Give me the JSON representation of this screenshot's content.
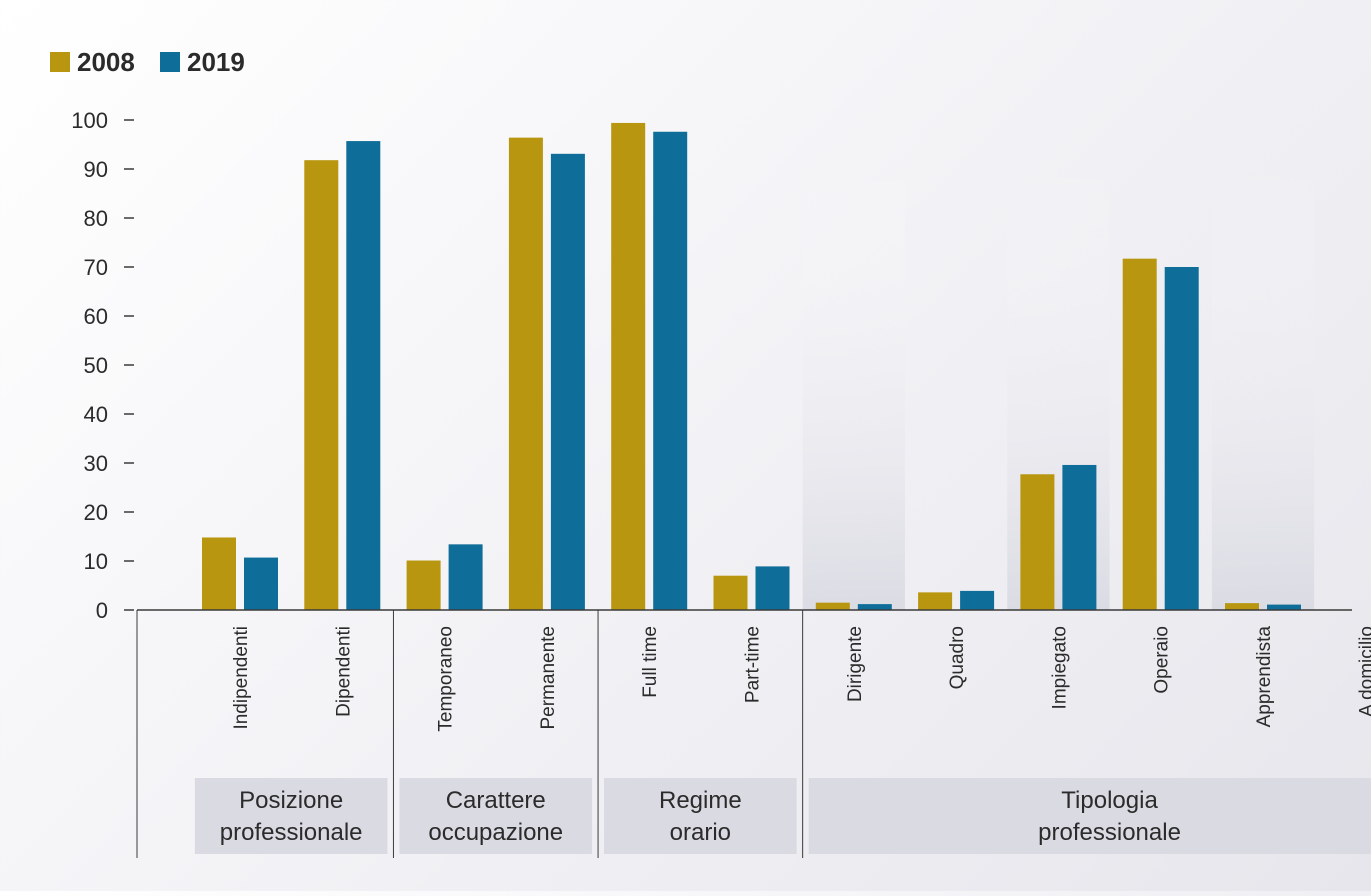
{
  "chart_data": {
    "type": "bar",
    "title": "",
    "xlabel": "",
    "ylabel": "",
    "ylim": [
      0,
      100
    ],
    "yticks": [
      0,
      10,
      20,
      30,
      40,
      50,
      60,
      70,
      80,
      90,
      100
    ],
    "legend_position": "top-left",
    "categories": [
      "Indipendenti",
      "Dipendenti",
      "Temporaneo",
      "Permanente",
      "Full time",
      "Part-time",
      "Dirigente",
      "Quadro",
      "Impiegato",
      "Operaio",
      "Apprendista",
      "A domicilio"
    ],
    "series": [
      {
        "name": "2008",
        "color": "#b8960f",
        "values": [
          14.8,
          91.8,
          10.1,
          96.4,
          99.4,
          7.0,
          1.5,
          3.6,
          27.7,
          71.7,
          1.4,
          0
        ]
      },
      {
        "name": "2019",
        "color": "#0e6e99",
        "values": [
          10.7,
          95.7,
          13.4,
          93.1,
          97.6,
          8.9,
          1.2,
          3.9,
          29.6,
          70.0,
          1.1,
          0
        ]
      }
    ],
    "groups": [
      {
        "label_lines": [
          "Posizione",
          "professionale"
        ],
        "categories": [
          "Indipendenti",
          "Dipendenti"
        ]
      },
      {
        "label_lines": [
          "Carattere",
          "occupazione"
        ],
        "categories": [
          "Temporaneo",
          "Permanente"
        ]
      },
      {
        "label_lines": [
          "Regime",
          "orario"
        ],
        "categories": [
          "Full time",
          "Part-time"
        ]
      },
      {
        "label_lines": [
          "Tipologia",
          "professionale"
        ],
        "categories": [
          "Dirigente",
          "Quadro",
          "Impiegato",
          "Operaio",
          "Apprendista",
          "A domicilio"
        ]
      }
    ],
    "grid": false
  },
  "colors": {
    "group_label_bg": "#dadae3",
    "axis": "#3a3a3a"
  }
}
